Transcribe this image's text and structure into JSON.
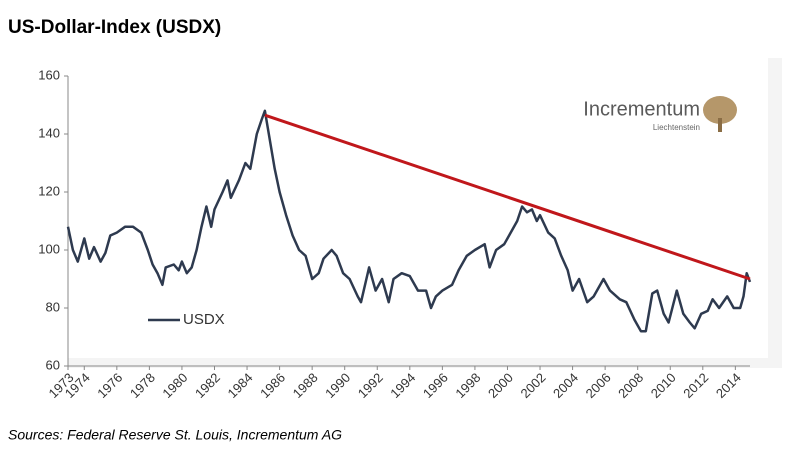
{
  "chart_data": {
    "type": "line",
    "title": "US-Dollar-Index (USDX)",
    "source": "Sources: Federal Reserve St. Louis, Incrementum AG",
    "logo": {
      "name": "Incrementum",
      "sub": "Liechtenstein"
    },
    "xlim": [
      1973,
      2014.9
    ],
    "ylim": [
      60,
      160
    ],
    "yticks": [
      60,
      80,
      100,
      120,
      140,
      160
    ],
    "xticks": [
      1973,
      1974,
      1976,
      1978,
      1980,
      1982,
      1984,
      1986,
      1988,
      1990,
      1992,
      1994,
      1996,
      1998,
      2000,
      2002,
      2004,
      2006,
      2008,
      2010,
      2012,
      2014
    ],
    "legend": "lower left",
    "series": [
      {
        "name": "USDX",
        "color": "#2e3a4f",
        "x": [
          1973.0,
          1973.3,
          1973.6,
          1974.0,
          1974.3,
          1974.6,
          1975.0,
          1975.3,
          1975.6,
          1976.0,
          1976.5,
          1977.0,
          1977.5,
          1977.9,
          1978.2,
          1978.5,
          1978.8,
          1979.0,
          1979.5,
          1979.8,
          1980.0,
          1980.3,
          1980.6,
          1980.9,
          1981.2,
          1981.5,
          1981.8,
          1982.0,
          1982.5,
          1982.8,
          1983.0,
          1983.5,
          1983.9,
          1984.2,
          1984.6,
          1984.9,
          1985.1,
          1985.4,
          1985.7,
          1986.0,
          1986.4,
          1986.8,
          1987.2,
          1987.6,
          1988.0,
          1988.4,
          1988.7,
          1989.2,
          1989.5,
          1989.9,
          1990.3,
          1990.8,
          1991.0,
          1991.5,
          1991.9,
          1992.3,
          1992.7,
          1993.0,
          1993.5,
          1994.0,
          1994.5,
          1995.0,
          1995.3,
          1995.6,
          1996.0,
          1996.6,
          1997.0,
          1997.5,
          1998.0,
          1998.6,
          1998.9,
          1999.3,
          1999.8,
          2000.2,
          2000.6,
          2000.9,
          2001.2,
          2001.5,
          2001.8,
          2002.0,
          2002.5,
          2002.9,
          2003.3,
          2003.7,
          2004.0,
          2004.4,
          2004.9,
          2005.3,
          2005.9,
          2006.3,
          2006.9,
          2007.3,
          2007.8,
          2008.2,
          2008.5,
          2008.9,
          2009.2,
          2009.6,
          2009.9,
          2010.4,
          2010.8,
          2011.2,
          2011.5,
          2011.9,
          2012.3,
          2012.6,
          2013.0,
          2013.5,
          2013.9,
          2014.3,
          2014.5,
          2014.7,
          2014.9
        ],
        "values": [
          108,
          100,
          96,
          104,
          97,
          101,
          96,
          99,
          105,
          106,
          108,
          108,
          106,
          100,
          95,
          92,
          88,
          94,
          95,
          93,
          96,
          92,
          94,
          100,
          108,
          115,
          108,
          114,
          120,
          124,
          118,
          124,
          130,
          128,
          140,
          145,
          148,
          138,
          128,
          120,
          112,
          105,
          100,
          98,
          90,
          92,
          97,
          100,
          98,
          92,
          90,
          84,
          82,
          94,
          86,
          90,
          82,
          90,
          92,
          91,
          86,
          86,
          80,
          84,
          86,
          88,
          93,
          98,
          100,
          102,
          94,
          100,
          102,
          106,
          110,
          115,
          113,
          114,
          110,
          112,
          106,
          104,
          98,
          93,
          86,
          90,
          82,
          84,
          90,
          86,
          83,
          82,
          76,
          72,
          72,
          85,
          86,
          78,
          75,
          86,
          78,
          75,
          73,
          78,
          79,
          83,
          80,
          84,
          80,
          80,
          84,
          92,
          89
        ]
      }
    ],
    "trend_line": {
      "color": "#c0171b",
      "x": [
        1985.1,
        2014.9
      ],
      "values": [
        146.5,
        90
      ]
    }
  }
}
